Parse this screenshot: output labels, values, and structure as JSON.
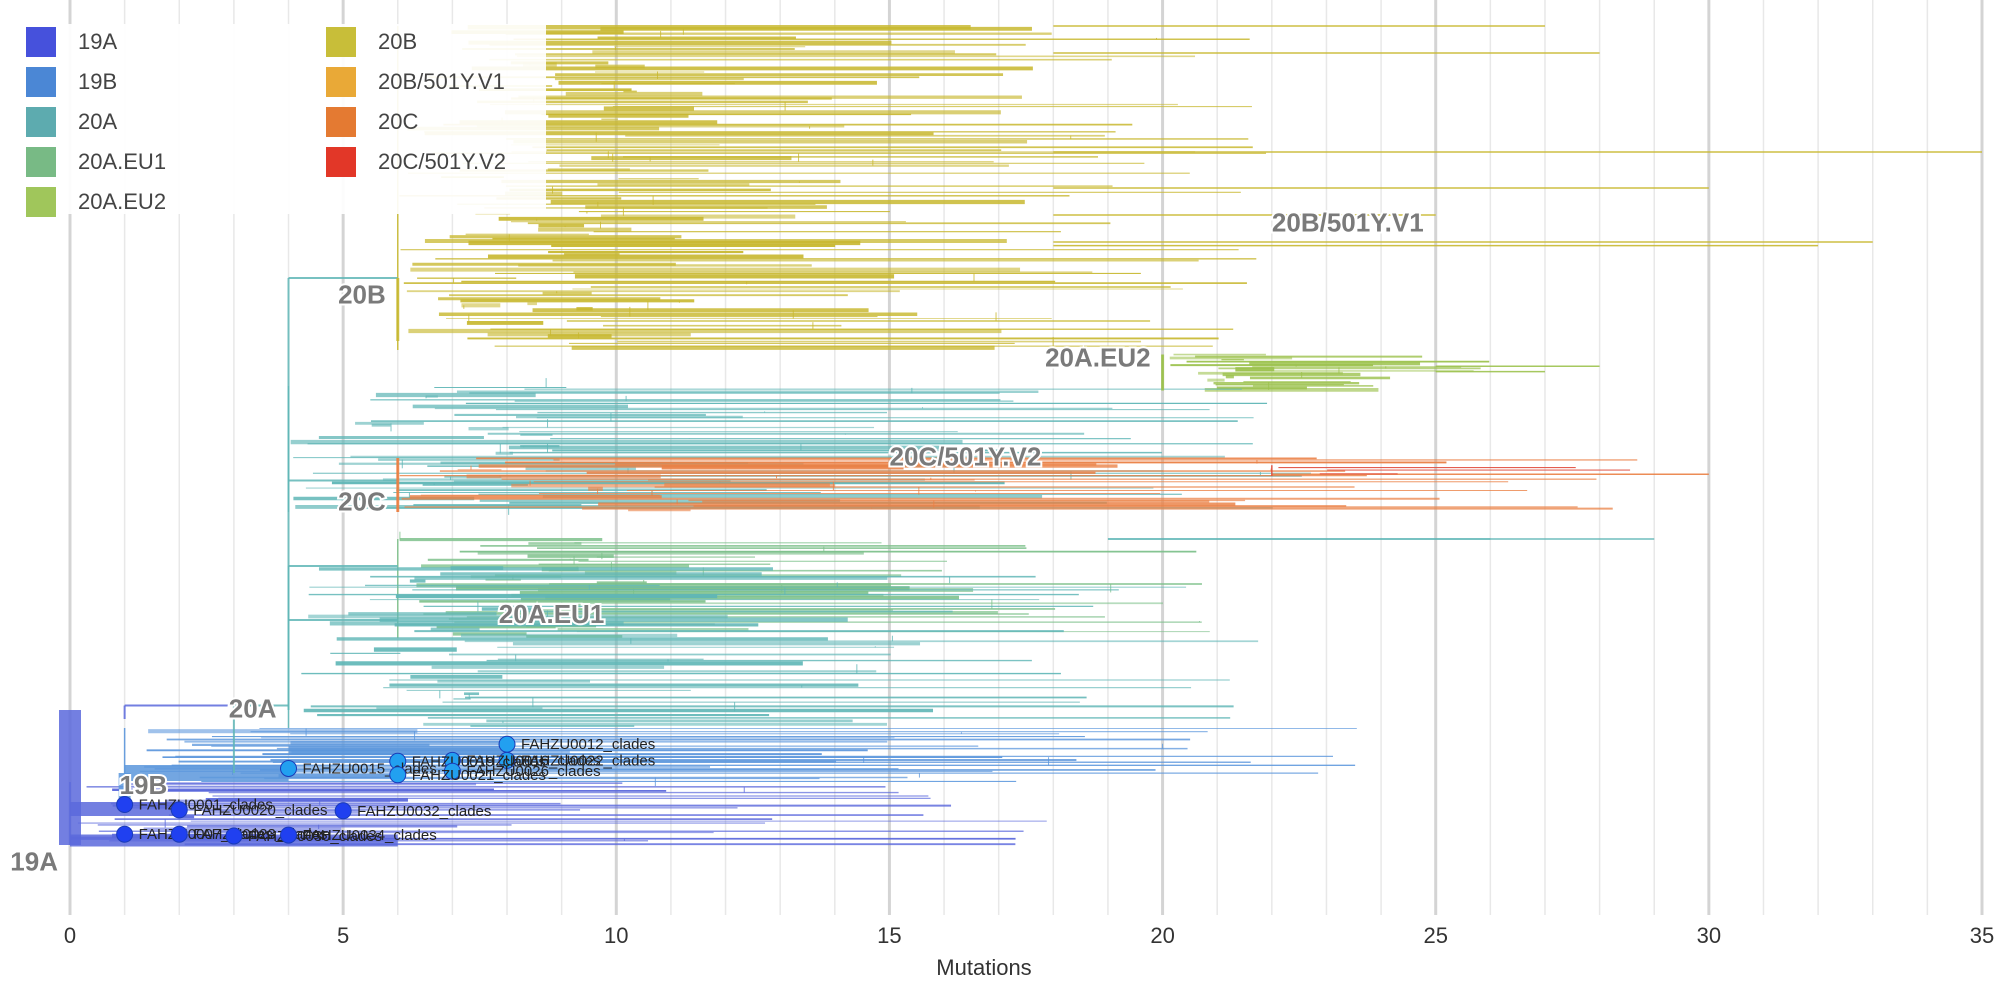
{
  "chart_data": {
    "type": "phylogenetic-tree",
    "title": "",
    "xlabel": "Mutations",
    "ylabel": "",
    "xlim": [
      0,
      35
    ],
    "x_ticks": [
      0,
      5,
      10,
      15,
      20,
      25,
      30,
      35
    ],
    "x_minor_step": 1,
    "legend": [
      {
        "name": "19A",
        "color": "#4a55e8"
      },
      {
        "name": "19B",
        "color": "#4f8ee0"
      },
      {
        "name": "20A",
        "color": "#62b4b8"
      },
      {
        "name": "20A.EU1",
        "color": "#7ec48c"
      },
      {
        "name": "20A.EU2",
        "color": "#a8d060"
      },
      {
        "name": "20B",
        "color": "#d2c83c"
      },
      {
        "name": "20B/501Y.V1",
        "color": "#f5b23a"
      },
      {
        "name": "20C",
        "color": "#f08035"
      },
      {
        "name": "20C/501Y.V2",
        "color": "#ee3a2a"
      }
    ],
    "branch_colors": {
      "19A": "#5a68dc",
      "19B": "#5b96dc",
      "20A": "#5fb6b6",
      "20A.EU1": "#7cc08a",
      "20A.EU2": "#9cc24e",
      "20B": "#c8b830",
      "20C": "#ea8044",
      "20C/501Y.V2": "#e04b3c"
    },
    "clade_labels": [
      {
        "label": "19A",
        "x": 0,
        "y": 0.965
      },
      {
        "label": "19B",
        "x": 2,
        "y": 0.88
      },
      {
        "label": "20A",
        "x": 4,
        "y": 0.795
      },
      {
        "label": "20A.EU1",
        "x": 10,
        "y": 0.69
      },
      {
        "label": "20C",
        "x": 6,
        "y": 0.565
      },
      {
        "label": "20C/501Y.V2",
        "x": 18,
        "y": 0.515
      },
      {
        "label": "20A.EU2",
        "x": 20,
        "y": 0.405
      },
      {
        "label": "20B",
        "x": 6,
        "y": 0.335
      },
      {
        "label": "20B/501Y.V1",
        "x": 25,
        "y": 0.255
      }
    ],
    "clades": [
      {
        "name": "20B",
        "color_key": "20B",
        "x_root": 6,
        "x_min": 7,
        "x_max": 22,
        "y_range": [
          0.02,
          0.38
        ],
        "n_lines": 130,
        "density_x": 18,
        "extra_tips": [
          [
            27,
            0.02
          ],
          [
            28,
            0.05
          ],
          [
            35,
            0.16
          ],
          [
            30,
            0.2
          ],
          [
            33,
            0.26
          ],
          [
            32,
            0.264
          ],
          [
            25,
            0.23
          ]
        ]
      },
      {
        "name": "20A.EU2",
        "color_key": "20A.EU2",
        "x_root": 20,
        "x_min": 21,
        "x_max": 26,
        "y_range": [
          0.385,
          0.425
        ],
        "n_lines": 22,
        "density_x": 25,
        "extra_tips": [
          [
            28,
            0.398
          ],
          [
            27,
            0.404
          ]
        ]
      },
      {
        "name": "20A",
        "color_key": "20A",
        "x_root": 4,
        "x_min": 5,
        "x_max": 23,
        "y_range": [
          0.42,
          0.56
        ],
        "n_lines": 60,
        "density_x": 19,
        "extra_tips": [
          [
            29,
            0.59
          ],
          [
            26,
            0.59
          ]
        ]
      },
      {
        "name": "20C",
        "color_key": "20C",
        "x_root": 6,
        "x_min": 7,
        "x_max": 29,
        "y_range": [
          0.5,
          0.56
        ],
        "n_lines": 30,
        "density_x": 22,
        "extra_tips": [
          [
            30,
            0.518
          ]
        ]
      },
      {
        "name": "20C/501Y.V2",
        "color_key": "20C/501Y.V2",
        "x_root": 22,
        "x_min": 23,
        "x_max": 30,
        "y_range": [
          0.508,
          0.52
        ],
        "n_lines": 3,
        "density_x": 25,
        "extra_tips": []
      },
      {
        "name": "20A.EU1",
        "color_key": "20A.EU1",
        "x_root": 6,
        "x_min": 8,
        "x_max": 21,
        "y_range": [
          0.59,
          0.7
        ],
        "n_lines": 45,
        "density_x": 17,
        "extra_tips": []
      },
      {
        "name": "20A-base",
        "color_key": "20A",
        "x_root": 4,
        "x_min": 6,
        "x_max": 22,
        "y_range": [
          0.62,
          0.8
        ],
        "n_lines": 55,
        "density_x": 16,
        "extra_tips": []
      },
      {
        "name": "19B",
        "color_key": "19B",
        "x_root": 1,
        "x_min": 4,
        "x_max": 24,
        "y_range": [
          0.8,
          0.86
        ],
        "n_lines": 30,
        "density_x": 10,
        "extra_tips": []
      },
      {
        "name": "19A",
        "color_key": "19A",
        "x_root": 0,
        "x_min": 2,
        "x_max": 18,
        "y_range": [
          0.86,
          0.93
        ],
        "n_lines": 30,
        "density_x": 8,
        "extra_tips": []
      }
    ],
    "highlighted_tips": [
      {
        "label": "FAHZU0012_clades",
        "x": 8,
        "y": 0.818,
        "color": "#22a0f0"
      },
      {
        "label": "FAHZU0022_clades",
        "x": 8,
        "y": 0.836,
        "color": "#22a0f0"
      },
      {
        "label": "FAHZU0016_clades",
        "x": 7,
        "y": 0.836,
        "color": "#22a0f0"
      },
      {
        "label": "FAHZU0019_clades",
        "x": 6,
        "y": 0.837,
        "color": "#22a0f0"
      },
      {
        "label": "FAHZU0026_clades",
        "x": 7,
        "y": 0.848,
        "color": "#22a0f0"
      },
      {
        "label": "FAHZU0015_clades",
        "x": 4,
        "y": 0.845,
        "color": "#22a0f0"
      },
      {
        "label": "FAHZU0021_clades",
        "x": 6,
        "y": 0.852,
        "color": "#22a0f0"
      },
      {
        "label": "FAHZU0001_clades",
        "x": 1,
        "y": 0.885,
        "color": "#2040f0"
      },
      {
        "label": "FAHZU0020_clades",
        "x": 2,
        "y": 0.891,
        "color": "#2040f0"
      },
      {
        "label": "FAHZU0032_clades",
        "x": 5,
        "y": 0.892,
        "color": "#2040f0"
      },
      {
        "label": "FAHZU0007_clades",
        "x": 1,
        "y": 0.918,
        "color": "#2040f0"
      },
      {
        "label": "FAHZU0023_clades",
        "x": 2,
        "y": 0.918,
        "color": "#2040f0"
      },
      {
        "label": "FAHZU0030_clades",
        "x": 3,
        "y": 0.92,
        "color": "#2040f0"
      },
      {
        "label": "FAHZU0034_clades",
        "x": 4,
        "y": 0.919,
        "color": "#2040f0"
      }
    ]
  }
}
